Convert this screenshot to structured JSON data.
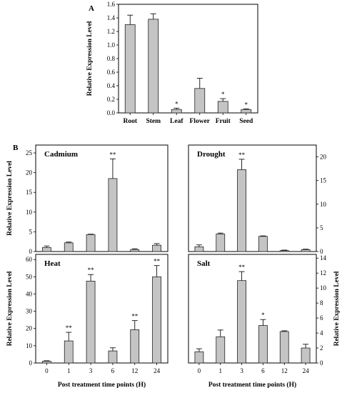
{
  "chart_data": [
    {
      "panel": "A",
      "type": "bar",
      "title": "",
      "categories": [
        "Root",
        "Stem",
        "Leaf",
        "Flower",
        "Fruit",
        "Seed"
      ],
      "values": [
        1.3,
        1.38,
        0.05,
        0.36,
        0.17,
        0.05
      ],
      "errors": [
        0.14,
        0.08,
        0.02,
        0.15,
        0.04,
        0.01
      ],
      "significance": [
        "",
        "",
        "*",
        "",
        "*",
        "*"
      ],
      "ylabel": "Relative Expression Level",
      "ylim": [
        0,
        1.6
      ],
      "yticks": [
        "0.0",
        "0.2",
        "0.4",
        "0.6",
        "0.8",
        "1.0",
        "1.2",
        "1.4",
        "1.6"
      ]
    },
    {
      "panel": "B",
      "type": "bar",
      "title": "Cadmium",
      "categories": [
        "0",
        "1",
        "3",
        "6",
        "12",
        "24"
      ],
      "values": [
        1.0,
        2.2,
        4.3,
        18.5,
        0.5,
        1.6
      ],
      "errors": [
        0.4,
        0.2,
        0.1,
        5.0,
        0.2,
        0.4
      ],
      "significance": [
        "",
        "",
        "",
        "**",
        "",
        ""
      ],
      "ylabel": "Relative Expression Level",
      "ylim": [
        0,
        27
      ],
      "yticks": [
        "0",
        "5",
        "10",
        "15",
        "20",
        "25"
      ]
    },
    {
      "type": "bar",
      "title": "Drought",
      "categories": [
        "0",
        "1",
        "3",
        "6",
        "12",
        "24"
      ],
      "values": [
        1.0,
        3.7,
        17.3,
        3.2,
        0.2,
        0.4
      ],
      "errors": [
        0.4,
        0.2,
        2.2,
        0.1,
        0.1,
        0.1
      ],
      "significance": [
        "",
        "",
        "**",
        "",
        "",
        ""
      ],
      "ylim": [
        0,
        22.5
      ],
      "yticks": [
        "0",
        "5",
        "10",
        "15",
        "20"
      ]
    },
    {
      "type": "bar",
      "title": "Heat",
      "categories": [
        "0",
        "1",
        "3",
        "6",
        "12",
        "24"
      ],
      "values": [
        1.0,
        12.8,
        47.5,
        7.0,
        19.3,
        50.0
      ],
      "errors": [
        0.3,
        5.0,
        3.8,
        1.8,
        5.3,
        6.5
      ],
      "significance": [
        "",
        "**",
        "**",
        "",
        "**",
        "**"
      ],
      "ylabel": "Relative Expression Level",
      "xlabel": "Post treatment time points (H)",
      "ylim": [
        0,
        63
      ],
      "yticks": [
        "0",
        "10",
        "20",
        "30",
        "40",
        "50",
        "60"
      ]
    },
    {
      "type": "bar",
      "title": "Salt",
      "categories": [
        "0",
        "1",
        "3",
        "6",
        "12",
        "24"
      ],
      "values": [
        1.5,
        3.5,
        11.0,
        5.0,
        4.2,
        2.0
      ],
      "errors": [
        0.4,
        0.9,
        1.2,
        0.8,
        0.1,
        0.5
      ],
      "significance": [
        "",
        "",
        "**",
        "*",
        "",
        ""
      ],
      "ylabel": "Relative Expression Level",
      "xlabel": "Post treatment time points (H)",
      "ylim": [
        0,
        14.5
      ],
      "yticks": [
        "0",
        "2",
        "4",
        "6",
        "8",
        "10",
        "12",
        "14"
      ]
    }
  ]
}
